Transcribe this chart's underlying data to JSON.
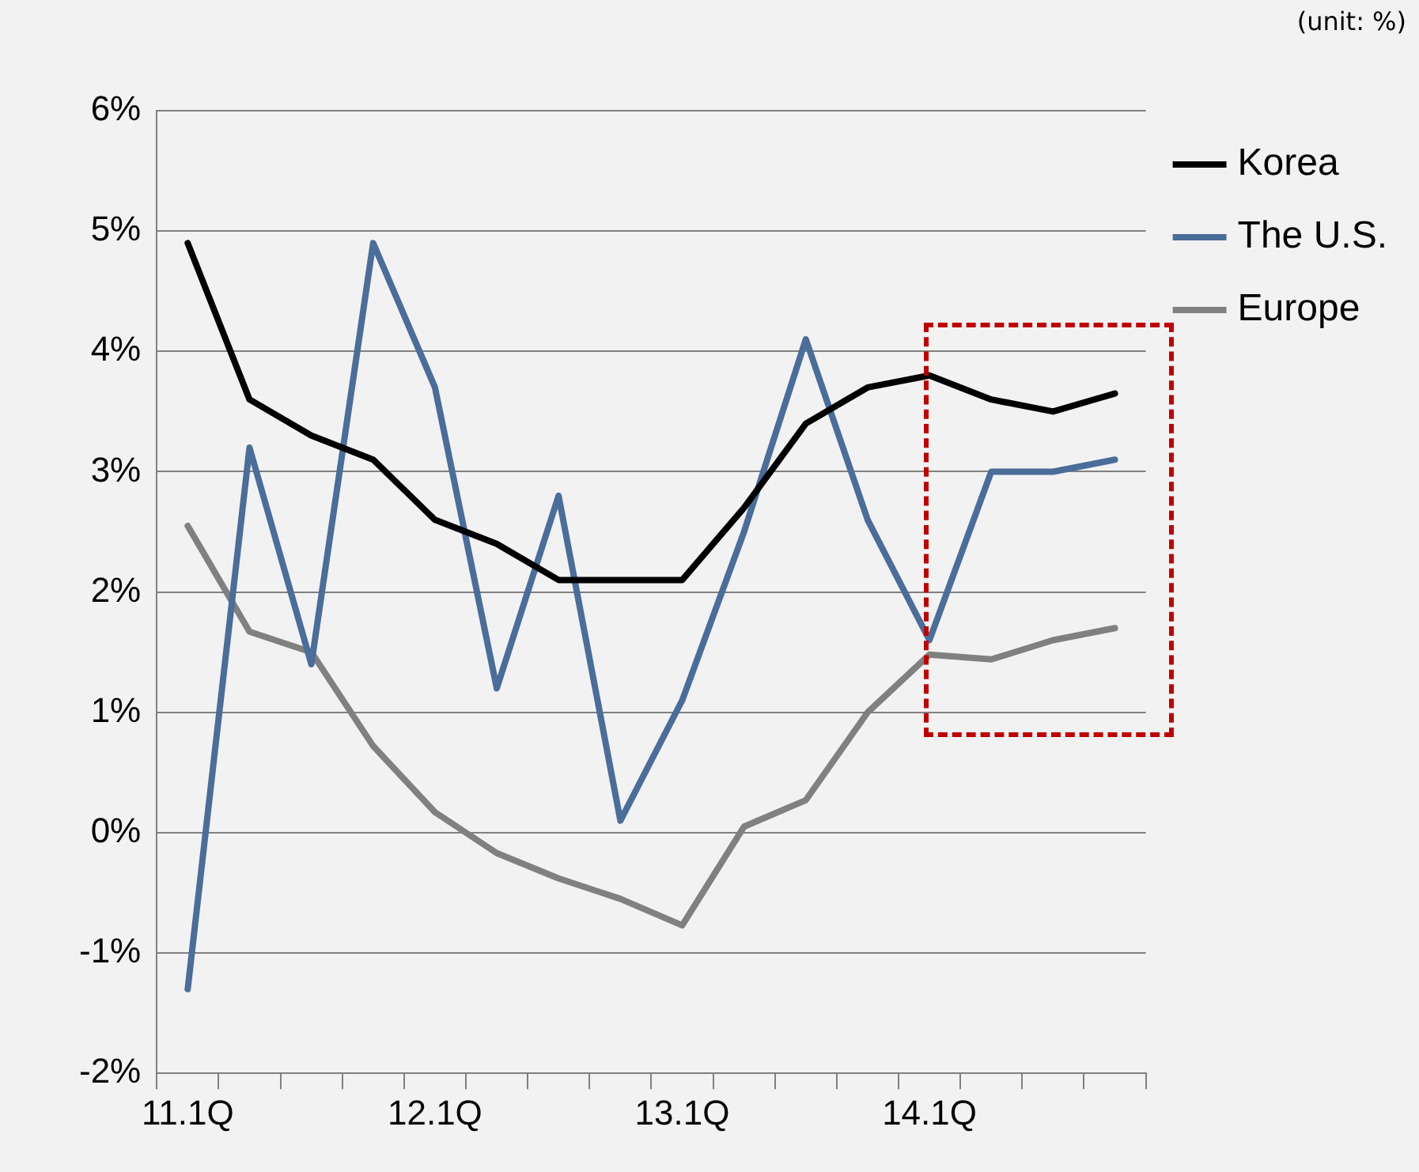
{
  "chart_data": {
    "type": "line",
    "annotations": [
      "(unit: %)"
    ],
    "categories": [
      "11.1Q",
      null,
      null,
      null,
      "12.1Q",
      null,
      null,
      null,
      "13.1Q",
      null,
      null,
      null,
      "14.1Q",
      null,
      null,
      null
    ],
    "series": [
      {
        "name": "Korea",
        "color": "#000000",
        "values": [
          4.9,
          3.6,
          3.3,
          3.1,
          2.6,
          2.4,
          2.1,
          2.1,
          2.1,
          2.7,
          3.4,
          3.7,
          3.8,
          3.6,
          3.5,
          3.65
        ]
      },
      {
        "name": "The U.S.",
        "color": "#4a6d9a",
        "values": [
          -1.3,
          3.2,
          1.4,
          4.9,
          3.7,
          1.2,
          2.8,
          0.1,
          1.1,
          2.5,
          4.1,
          2.6,
          1.6,
          3.0,
          3.0,
          3.1
        ]
      },
      {
        "name": "Europe",
        "color": "#808080",
        "values": [
          2.55,
          1.67,
          1.5,
          0.72,
          0.17,
          -0.17,
          -0.38,
          -0.55,
          -0.77,
          0.05,
          0.27,
          1.0,
          1.48,
          1.44,
          1.6,
          1.7
        ]
      }
    ],
    "ylim": [
      -2,
      6
    ],
    "yticks": [
      {
        "value": -2,
        "label": "-2%"
      },
      {
        "value": -1,
        "label": "-1%"
      },
      {
        "value": 0,
        "label": "0%"
      },
      {
        "value": 1,
        "label": "1%"
      },
      {
        "value": 2,
        "label": "2%"
      },
      {
        "value": 3,
        "label": "3%"
      },
      {
        "value": 4,
        "label": "4%"
      },
      {
        "value": 5,
        "label": "5%"
      },
      {
        "value": 6,
        "label": "6%"
      }
    ],
    "grid": "y",
    "legend": "right",
    "marker": "none",
    "line_style": "solid"
  }
}
